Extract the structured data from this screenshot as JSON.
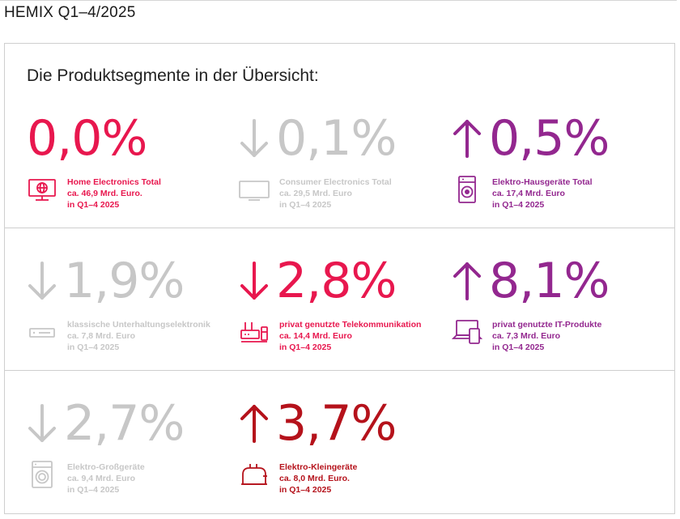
{
  "page": {
    "title": "HEMIX Q1–4/2025"
  },
  "panel": {
    "heading": "Die Produktsegmente in der Übersicht:"
  },
  "segments": [
    {
      "value": "0,0%",
      "trend": "none",
      "icon": "globe-monitor-icon",
      "color": "#e8174e",
      "name": "Home Electronics Total",
      "revenue": "ca. 46,9 Mrd. Euro.",
      "period": "in Q1–4 2025"
    },
    {
      "value": "0,1%",
      "trend": "down",
      "icon": "tv-icon",
      "color": "#c7c7c7",
      "name": "Consumer Electronics Total",
      "revenue": "ca. 29,5 Mrd. Euro",
      "period": "in Q1–4 2025"
    },
    {
      "value": "0,5%",
      "trend": "up",
      "icon": "washing-machine-icon",
      "color": "#93278f",
      "name": "Elektro-Hausgeräte Total",
      "revenue": "ca. 17,4 Mrd. Euro",
      "period": "in Q1–4 2025"
    },
    {
      "value": "1,9%",
      "trend": "down",
      "icon": "receiver-icon",
      "color": "#c7c7c7",
      "name": "klassische Unterhaltungselektronik",
      "revenue": "ca. 7,8 Mrd. Euro",
      "period": "in Q1–4 2025"
    },
    {
      "value": "2,8%",
      "trend": "down",
      "icon": "router-phone-icon",
      "color": "#e8174e",
      "name": "privat genutzte Telekommunikation",
      "revenue": "ca. 14,4 Mrd. Euro",
      "period": "in Q1–4 2025"
    },
    {
      "value": "8,1%",
      "trend": "up",
      "icon": "laptop-tablet-icon",
      "color": "#93278f",
      "name": "privat genutzte IT-Produkte",
      "revenue": "ca. 7,3 Mrd. Euro",
      "period": "in Q1–4 2025"
    },
    {
      "value": "2,7%",
      "trend": "down",
      "icon": "front-loader-icon",
      "color": "#c7c7c7",
      "name": "Elektro-Großgeräte",
      "revenue": "ca. 9,4 Mrd. Euro",
      "period": "in Q1–4 2025"
    },
    {
      "value": "3,7%",
      "trend": "up",
      "icon": "toaster-icon",
      "color": "#b5121b",
      "name": "Elektro-Kleingeräte",
      "revenue": "ca. 8,0 Mrd. Euro.",
      "period": "in Q1–4 2025"
    }
  ]
}
